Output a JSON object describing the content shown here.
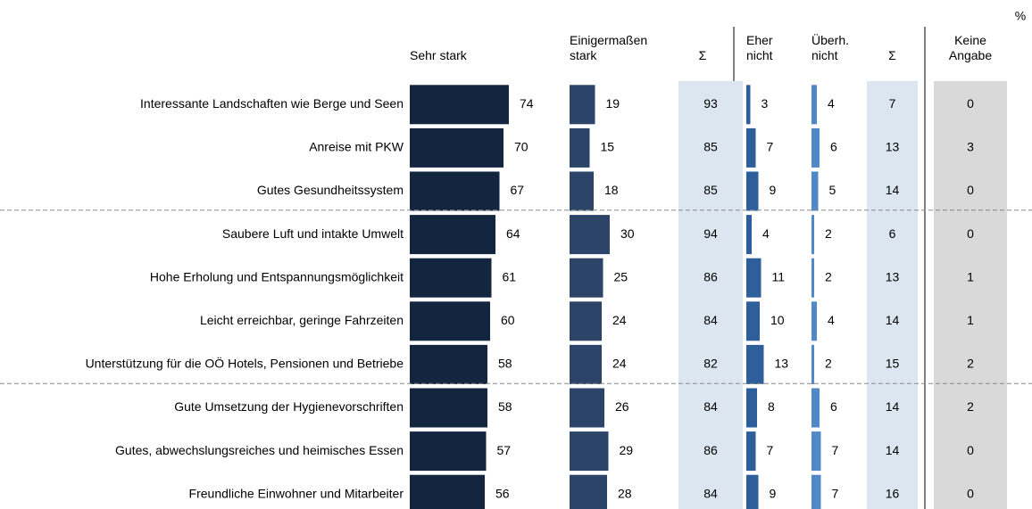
{
  "chart_data": {
    "type": "bar",
    "unit": "%",
    "categories": [
      "Interessante Landschaften wie Berge und Seen",
      "Anreise mit PKW",
      "Gutes Gesundheitssystem",
      "Saubere Luft und intakte Umwelt",
      "Hohe Erholung und Entspannungsmöglichkeit",
      "Leicht erreichbar, geringe Fahrzeiten",
      "Unterstützung für die OÖ Hotels, Pensionen und Betriebe",
      "Gute Umsetzung der Hygienevorschriften",
      "Gutes, abwechslungsreiches und heimisches Essen",
      "Freundliche Einwohner und Mitarbeiter"
    ],
    "series": [
      {
        "name": "Sehr stark",
        "mark": "bar",
        "color": "#14253f",
        "values": [
          74,
          70,
          67,
          64,
          61,
          60,
          58,
          58,
          57,
          56
        ]
      },
      {
        "name": "Einigermaßen stark",
        "mark": "bar",
        "color": "#2b4468",
        "values": [
          19,
          15,
          18,
          30,
          25,
          24,
          24,
          26,
          29,
          28
        ]
      },
      {
        "name": "Σ",
        "mark": "cell",
        "color": "#dce6f0",
        "values": [
          93,
          85,
          85,
          94,
          86,
          84,
          82,
          84,
          86,
          84
        ]
      },
      {
        "name": "Eher nicht",
        "mark": "bar",
        "color": "#2f5f9a",
        "values": [
          3,
          7,
          9,
          4,
          11,
          10,
          13,
          8,
          7,
          9
        ]
      },
      {
        "name": "Überh. nicht",
        "mark": "bar",
        "color": "#5089c8",
        "values": [
          4,
          6,
          5,
          2,
          2,
          4,
          2,
          6,
          7,
          7
        ]
      },
      {
        "name": "Σ",
        "mark": "cell",
        "color": "#dce6f0",
        "values": [
          7,
          13,
          14,
          6,
          13,
          14,
          15,
          14,
          14,
          16
        ]
      },
      {
        "name": "Keine Angabe",
        "mark": "cell",
        "color": "#d9d9d9",
        "values": [
          0,
          3,
          0,
          0,
          1,
          1,
          2,
          2,
          0,
          0
        ]
      }
    ]
  }
}
